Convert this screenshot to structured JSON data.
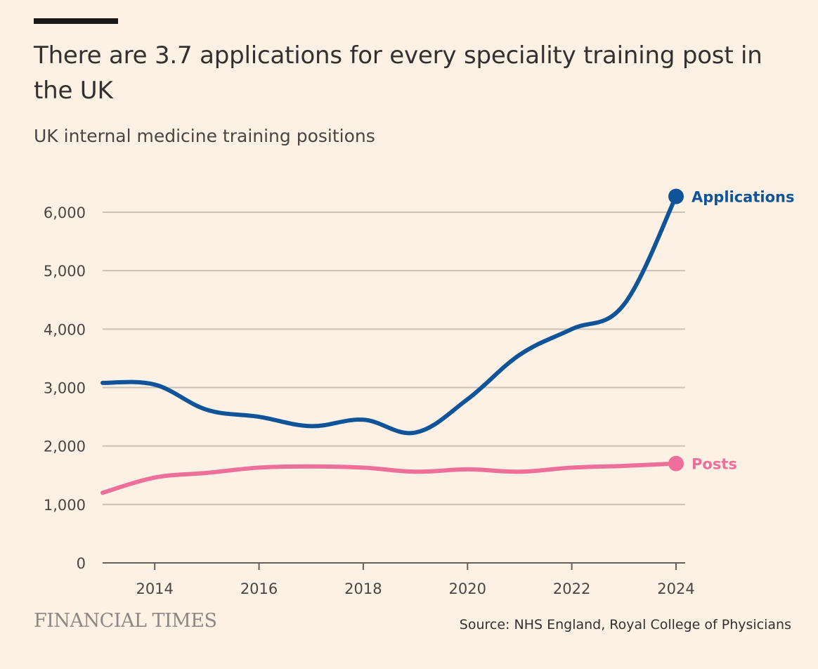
{
  "header": {
    "title": "There are 3.7 applications for every speciality training post in the UK",
    "subtitle": "UK internal medicine training positions"
  },
  "footer": {
    "brand": "FINANCIAL TIMES",
    "source": "Source: NHS England, Royal College of Physicians"
  },
  "colors": {
    "applications": "#0f5499",
    "posts": "#ee6f9a",
    "grid": "#ccc1b7",
    "axis": "#66605c",
    "background": "#fdf1e6"
  },
  "chart_data": {
    "type": "line",
    "title": "There are 3.7 applications for every speciality training post in the UK",
    "subtitle": "UK internal medicine training positions",
    "x": [
      2013,
      2014,
      2015,
      2016,
      2017,
      2018,
      2019,
      2020,
      2021,
      2022,
      2023,
      2024
    ],
    "xlim": [
      2013,
      2024
    ],
    "ylim": [
      0,
      6000
    ],
    "x_ticks": [
      2014,
      2016,
      2018,
      2020,
      2022,
      2024
    ],
    "x_tick_labels": [
      "2014",
      "2016",
      "2018",
      "2020",
      "2022",
      "2024"
    ],
    "y_ticks": [
      0,
      1000,
      2000,
      3000,
      4000,
      5000,
      6000
    ],
    "y_tick_labels": [
      "0",
      "1,000",
      "2,000",
      "3,000",
      "4,000",
      "5,000",
      "6,000"
    ],
    "grid": "horizontal",
    "legend": "direct labels at line ends",
    "series": [
      {
        "name": "Applications",
        "color": "#0f5499",
        "values": [
          3080,
          3050,
          2620,
          2500,
          2340,
          2450,
          2230,
          2800,
          3560,
          4000,
          4420,
          6270
        ]
      },
      {
        "name": "Posts",
        "color": "#ee6f9a",
        "values": [
          1200,
          1460,
          1540,
          1630,
          1650,
          1630,
          1560,
          1600,
          1560,
          1630,
          1660,
          1700
        ]
      }
    ]
  }
}
